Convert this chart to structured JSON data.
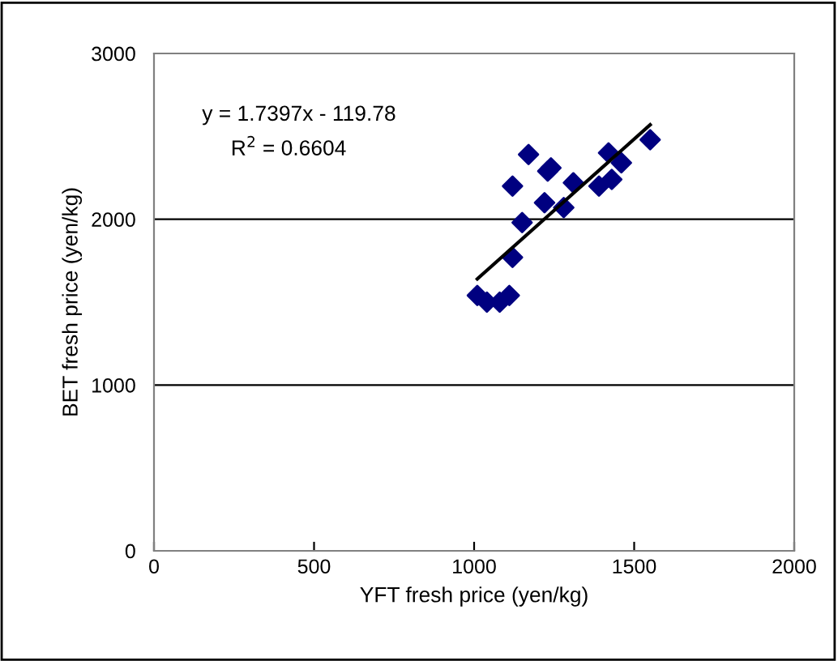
{
  "chart_data": {
    "type": "scatter",
    "xlabel": "YFT fresh price (yen/kg)",
    "ylabel": "BET fresh price (yen/kg)",
    "xlim": [
      0,
      2000
    ],
    "ylim": [
      0,
      3000
    ],
    "xticks": [
      0,
      500,
      1000,
      1500,
      2000
    ],
    "yticks": [
      0,
      1000,
      2000,
      3000
    ],
    "grid": "y",
    "legend": false,
    "annotations": [
      "y = 1.7397x - 119.78",
      "R$^{2}$ = 0.6604"
    ],
    "series": [
      {
        "marker": "diamond",
        "color": "#000080",
        "x": [
          1010,
          1040,
          1080,
          1110,
          1120,
          1150,
          1120,
          1170,
          1220,
          1230,
          1240,
          1280,
          1310,
          1390,
          1420,
          1430,
          1460,
          1550
        ],
        "values": [
          1540,
          1500,
          1500,
          1540,
          1770,
          1980,
          2200,
          2390,
          2100,
          2290,
          2310,
          2070,
          2220,
          2200,
          2400,
          2240,
          2340,
          2480
        ]
      },
      {
        "type": "line",
        "color": "#000000",
        "x": [
          1010,
          1550
        ],
        "values": [
          1640,
          2570
        ]
      }
    ]
  }
}
